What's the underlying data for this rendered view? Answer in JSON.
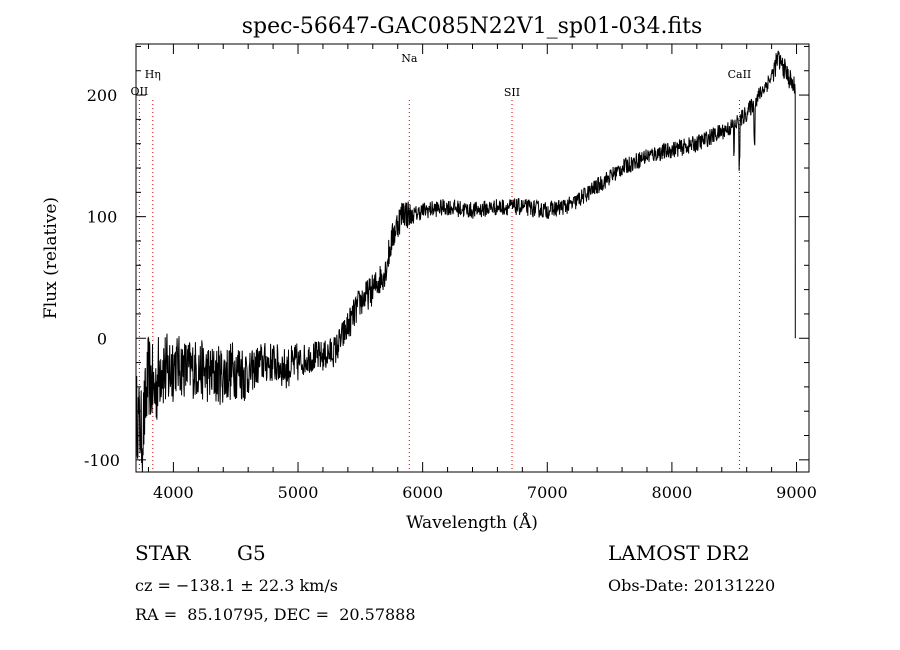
{
  "chart_data": {
    "type": "line",
    "title": "spec-56647-GAC085N22V1_sp01-034.fits",
    "xlabel": "Wavelength (Å)",
    "ylabel": "Flux (relative)",
    "xlim": [
      3700,
      9100
    ],
    "ylim": [
      -110,
      242
    ],
    "xticks": [
      4000,
      5000,
      6000,
      7000,
      8000,
      9000
    ],
    "yticks": [
      -100,
      0,
      100,
      200
    ],
    "grid": false,
    "series": [
      {
        "color": "#000000",
        "x": [
          3700,
          3750,
          3800,
          3850,
          3900,
          3950,
          4000,
          4100,
          4200,
          4300,
          4400,
          4500,
          4600,
          4700,
          4800,
          4900,
          5000,
          5100,
          5200,
          5300,
          5400,
          5500,
          5600,
          5700,
          5750,
          5800,
          5850,
          5900,
          6000,
          6200,
          6400,
          6600,
          6800,
          7000,
          7200,
          7400,
          7600,
          7800,
          8000,
          8200,
          8400,
          8500,
          8600,
          8700,
          8800,
          8850,
          8900,
          8950,
          8990
        ],
        "y": [
          -60,
          -80,
          -30,
          -45,
          -20,
          -30,
          -20,
          -25,
          -25,
          -30,
          -30,
          -25,
          -30,
          -20,
          -20,
          -25,
          -20,
          -15,
          -15,
          -10,
          10,
          30,
          40,
          55,
          80,
          95,
          105,
          100,
          105,
          108,
          105,
          108,
          108,
          105,
          110,
          125,
          140,
          150,
          155,
          160,
          170,
          175,
          185,
          200,
          215,
          230,
          222,
          212,
          205
        ]
      }
    ],
    "line_markers": [
      {
        "label": "Hη",
        "x": 3835
      },
      {
        "label": "OII",
        "x": 3727
      },
      {
        "label": "Na",
        "x": 5893
      },
      {
        "label": "SII",
        "x": 6717
      },
      {
        "label": "CaII",
        "x": 8542
      }
    ]
  },
  "info": {
    "object_class": "STAR",
    "subclass": "G5",
    "survey": "LAMOST DR2",
    "redshift_line": "cz = −138.1 ± 22.3 km/s",
    "obs_date_line": "Obs-Date: 20131220",
    "coords_line": "RA =  85.10795, DEC =  20.57888"
  }
}
